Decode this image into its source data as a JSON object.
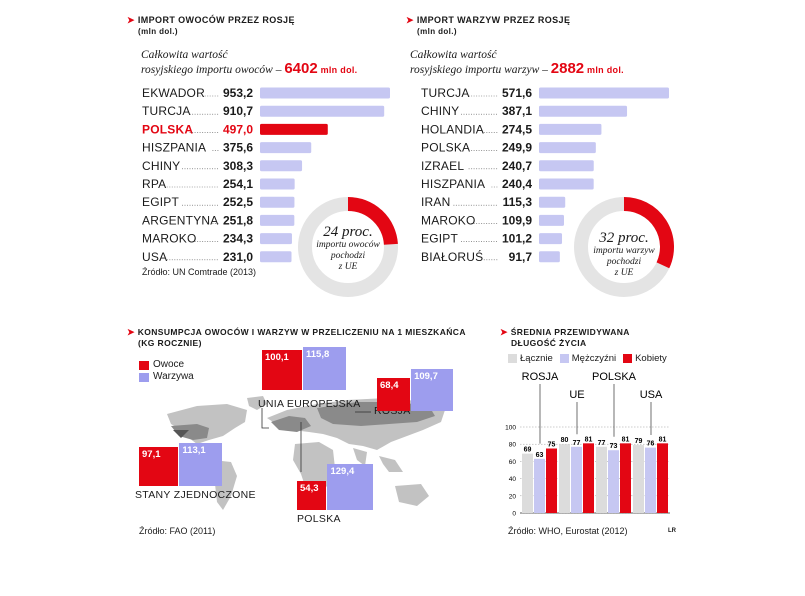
{
  "colors": {
    "red": "#e30613",
    "lavender": "#c6c7f2",
    "purple": "#9d9dee",
    "gray_bar": "#dcdcdc",
    "donut_gray": "#e4e4e4",
    "map_gray": "#c2c2c2"
  },
  "fruit": {
    "title": "Import owoców przez Rosję",
    "subtitle": "(mln dol.)",
    "total_line1": "Całkowita wartość",
    "total_line2": "rosyjskiego importu owoców –",
    "total_value": "6402",
    "total_unit": "mln dol.",
    "source": "Źródło: UN Comtrade (2013)",
    "donut": {
      "percent": 24,
      "big": "24 proc.",
      "line1": "importu owoców",
      "line2": "pochodzi",
      "line3": "z UE"
    }
  },
  "veg": {
    "title": "Import warzyw przez Rosję",
    "subtitle": "(mln dol.)",
    "total_line1": "Całkowita wartość",
    "total_line2": "rosyjskiego importu warzyw –",
    "total_value": "2882",
    "total_unit": "mln dol.",
    "donut": {
      "percent": 32,
      "big": "32 proc.",
      "line1": "importu warzyw",
      "line2": "pochodzi",
      "line3": "z UE"
    }
  },
  "consumption": {
    "title_line1": "Konsumpcja owoców i warzyw w przeliczeniu na 1 mieszkańca",
    "title_line2": "(kg rocznie)",
    "legend_fruit": "Owoce",
    "legend_veg": "Warzywa",
    "source": "Źródło: FAO (2011)"
  },
  "life": {
    "title_line1": "Średnia przewidywana",
    "title_line2": "długość życia",
    "legend": [
      "Łącznie",
      "Mężczyźni",
      "Kobiety"
    ],
    "source": "Źródło: WHO, Eurostat (2012)",
    "credit": "LR"
  },
  "chart_data": [
    {
      "type": "bar",
      "orientation": "horizontal",
      "title": "Import owoców przez Rosję",
      "unit": "(mln dol.)",
      "categories": [
        "EKWADOR",
        "TURCJA",
        "POLSKA",
        "HISZPANIA",
        "CHINY",
        "RPA",
        "EGIPT",
        "ARGENTYNA",
        "MAROKO",
        "USA"
      ],
      "values": [
        953.2,
        910.7,
        497.0,
        375.6,
        308.3,
        254.1,
        252.5,
        251.8,
        234.3,
        231.0
      ],
      "labels": [
        "953,2",
        "910,7",
        "497,0",
        "375,6",
        "308,3",
        "254,1",
        "252,5",
        "251,8",
        "234,3",
        "231,0"
      ],
      "highlight": "POLSKA"
    },
    {
      "type": "bar",
      "orientation": "horizontal",
      "title": "Import warzyw przez Rosję",
      "unit": "(mln dol.)",
      "categories": [
        "TURCJA",
        "CHINY",
        "HOLANDIA",
        "POLSKA",
        "IZRAEL",
        "HISZPANIA",
        "IRAN",
        "MAROKO",
        "EGIPT",
        "BIAŁORUŚ"
      ],
      "values": [
        571.6,
        387.1,
        274.5,
        249.9,
        240.7,
        240.4,
        115.3,
        109.9,
        101.2,
        91.7
      ],
      "labels": [
        "571,6",
        "387,1",
        "274,5",
        "249,9",
        "240,7",
        "240,4",
        "115,3",
        "109,9",
        "101,2",
        "91,7"
      ]
    },
    {
      "type": "pie",
      "title": "importu owoców pochodzi z UE",
      "values": [
        24,
        76
      ]
    },
    {
      "type": "pie",
      "title": "importu warzyw pochodzi z UE",
      "values": [
        32,
        68
      ]
    },
    {
      "type": "bar",
      "title": "Konsumpcja owoców i warzyw w przeliczeniu na 1 mieszkańca",
      "unit": "(kg rocznie)",
      "categories": [
        "UNIA EUROPEJSKA",
        "ROSJA",
        "STANY ZJEDNOCZONE",
        "POLSKA"
      ],
      "series": [
        {
          "name": "Owoce",
          "values": [
            100.1,
            68.4,
            97.1,
            54.3
          ],
          "labels": [
            "100,1",
            "68,4",
            "97,1",
            "54,3"
          ]
        },
        {
          "name": "Warzywa",
          "values": [
            115.8,
            109.7,
            113.1,
            129.4
          ],
          "labels": [
            "115,8",
            "109,7",
            "113,1",
            "129,4"
          ]
        }
      ]
    },
    {
      "type": "bar",
      "title": "Średnia przewidywana długość życia",
      "categories": [
        "ROSJA",
        "UE",
        "POLSKA",
        "USA"
      ],
      "series": [
        {
          "name": "Łącznie",
          "values": [
            69,
            80,
            77,
            79
          ]
        },
        {
          "name": "Mężczyźni",
          "values": [
            63,
            77,
            73,
            76
          ]
        },
        {
          "name": "Kobiety",
          "values": [
            75,
            81,
            81,
            81
          ]
        }
      ],
      "yticks": [
        0,
        20,
        40,
        60,
        80,
        100
      ],
      "ylim": [
        0,
        100
      ]
    }
  ]
}
